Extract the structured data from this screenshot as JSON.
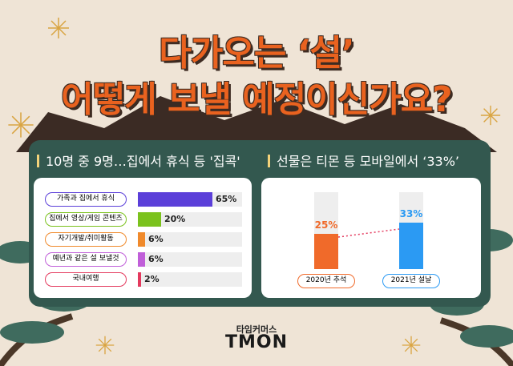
{
  "title": {
    "line1": "다가오는 ‘설’",
    "line2": "어떻게 보낼 예정이신가요?"
  },
  "colors": {
    "background": "#efe4d6",
    "panel": "#33584f",
    "title": "#e9621f",
    "brand_accent": "#f25a1f"
  },
  "chart_data": [
    {
      "type": "bar",
      "orientation": "horizontal",
      "title": "10명 중 9명…집에서 휴식 등 '집콕'",
      "categories": [
        "가족과 집에서 휴식",
        "집에서 영상/게임 콘텐츠",
        "자기개발/취미활동",
        "예년과 같은 설 보낼것",
        "국내여행"
      ],
      "values": [
        65,
        20,
        6,
        6,
        2
      ],
      "labels": [
        "65%",
        "20%",
        "6%",
        "6%",
        "2%"
      ],
      "unit": "%",
      "colors": [
        "#5b3fd9",
        "#7bc21d",
        "#f08a2c",
        "#c05fd9",
        "#e43a5e"
      ],
      "xlim": [
        0,
        100
      ],
      "grid": false,
      "legend": "none"
    },
    {
      "type": "bar",
      "orientation": "vertical",
      "title": "선물은 티몬 등 모바일에서 ‘33%’",
      "categories": [
        "2020년 추석",
        "2021년 설날"
      ],
      "values": [
        25,
        33
      ],
      "labels": [
        "25%",
        "33%"
      ],
      "unit": "%",
      "colors": [
        "#f06a2a",
        "#2b9af3"
      ],
      "ylim": [
        0,
        55
      ],
      "trend_line": "dotted",
      "grid": false,
      "legend": "none"
    }
  ],
  "brand": {
    "subtitle": "타임커머스",
    "logo_text": "TMON"
  }
}
